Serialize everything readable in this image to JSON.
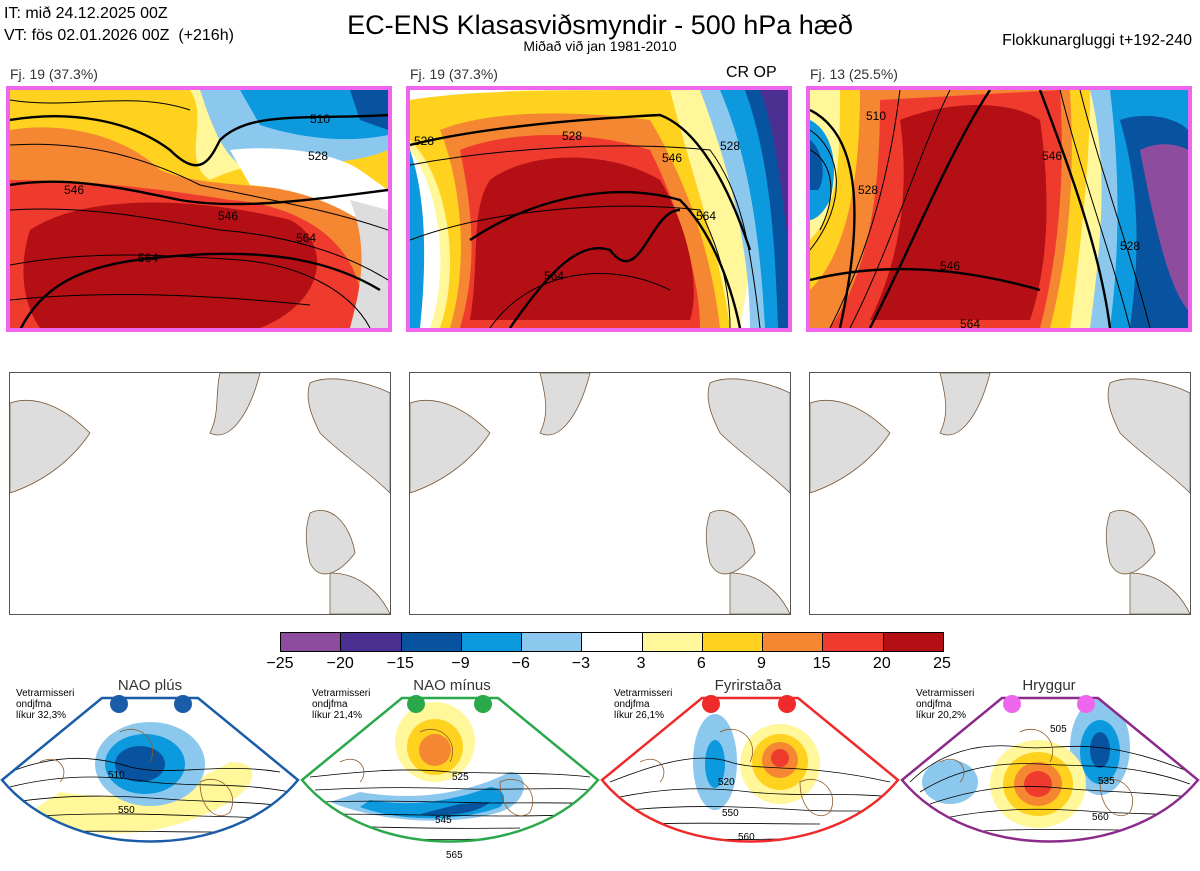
{
  "header": {
    "it_line": "IT: mið 24.12.2025 00Z",
    "vt_line": "VT: fös 02.01.2026 00Z  (+216h)",
    "title": "EC-ENS Klasasviðsmyndir - 500 hPa hæð",
    "subtitle": "Miðað við jan 1981-2010",
    "window": "Flokkunargluggi t+192-240"
  },
  "clusters": [
    {
      "label": "Fj. 19 (37.3%)",
      "contours": [
        "510",
        "528",
        "546",
        "546",
        "564",
        "564"
      ]
    },
    {
      "label": "Fj. 19 (37.3%)",
      "tag": "CR OP",
      "contours": [
        "528",
        "528",
        "546",
        "564",
        "564",
        "528"
      ]
    },
    {
      "label": "Fj. 13 (25.5%)",
      "contours": [
        "510",
        "528",
        "546",
        "546",
        "564",
        "528"
      ]
    }
  ],
  "colorbar": {
    "ticks": [
      "−25",
      "−20",
      "−15",
      "−9",
      "−6",
      "−3",
      "3",
      "6",
      "9",
      "15",
      "20",
      "25"
    ],
    "colors": [
      "#8e4c9e",
      "#4b2f91",
      "#08539f",
      "#0c99dd",
      "#8cc8ee",
      "#ffffff",
      "#fff79a",
      "#ffd21f",
      "#f58733",
      "#ee3b2e",
      "#b30f14"
    ]
  },
  "regimes": [
    {
      "name": "NAO plús",
      "line1": "Vetrarmisseri",
      "line2": "ondjfma",
      "line3": "líkur 32,3%",
      "dot": "#1a5ca8",
      "border": "#1a5ca8",
      "contours": [
        "510",
        "550"
      ]
    },
    {
      "name": "NAO mínus",
      "line1": "Vetrarmisseri",
      "line2": "ondjfma",
      "line3": "líkur 21,4%",
      "dot": "#2aa84a",
      "border": "#2aa84a",
      "contours": [
        "525",
        "545",
        "565"
      ]
    },
    {
      "name": "Fyrirstaða",
      "line1": "Vetrarmisseri",
      "line2": "ondjfma",
      "line3": "líkur 26,1%",
      "dot": "#ee2a2a",
      "border": "#ee2a2a",
      "contours": [
        "520",
        "550",
        "560"
      ]
    },
    {
      "name": "Hryggur",
      "line1": "Vetrarmisseri",
      "line2": "ondjfma",
      "line3": "líkur 20,2%",
      "dot": "#ee66ee",
      "border": "#8b2a8b",
      "contours": [
        "505",
        "535",
        "560"
      ]
    }
  ]
}
